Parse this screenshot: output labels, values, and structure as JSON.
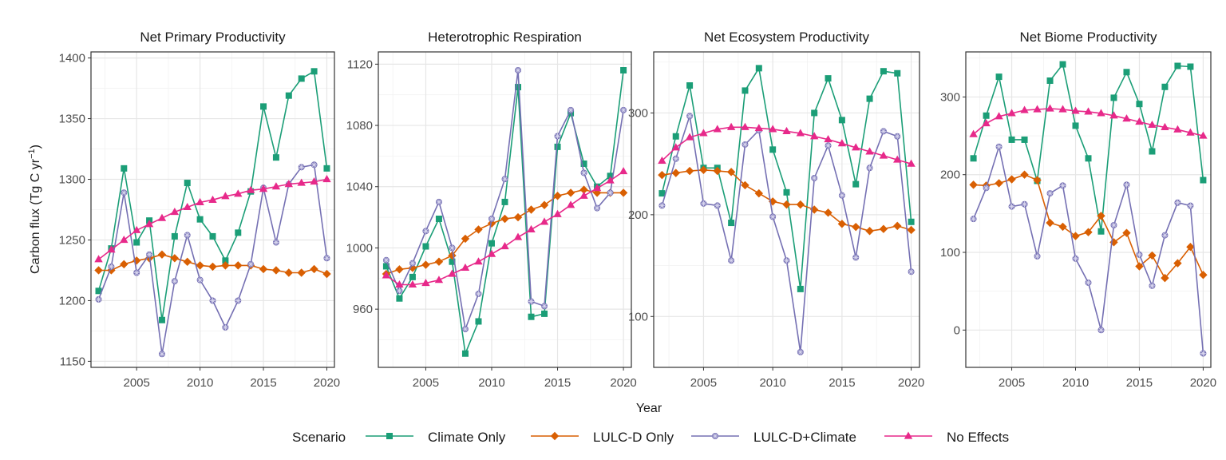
{
  "colors": {
    "Climate Only": "#1b9e77",
    "LULC-D Only": "#d95f02",
    "LULC-D+Climate": "#7570b3",
    "No Effects": "#e7298a"
  },
  "legend": {
    "title": "Scenario",
    "items": [
      {
        "name": "Climate Only",
        "shape": "square"
      },
      {
        "name": "LULC-D Only",
        "shape": "diamond"
      },
      {
        "name": "LULC-D+Climate",
        "shape": "asterisk-circle"
      },
      {
        "name": "No Effects",
        "shape": "triangle"
      }
    ]
  },
  "axes": {
    "xlabel": "Year",
    "ylabel": "Carbon flux (Tg C yr",
    "ylabel_sup": "−1",
    "ylabel_end": ")"
  },
  "chart_data": [
    {
      "type": "line",
      "title": "Net Primary Productivity",
      "xlim": [
        2001.4,
        2020.6
      ],
      "ylim": [
        1145,
        1405
      ],
      "xticks": [
        2005,
        2010,
        2015,
        2020
      ],
      "yticks": [
        1150,
        1200,
        1250,
        1300,
        1350,
        1400
      ],
      "x": [
        2002,
        2003,
        2004,
        2005,
        2006,
        2007,
        2008,
        2009,
        2010,
        2011,
        2012,
        2013,
        2014,
        2015,
        2016,
        2017,
        2018,
        2019,
        2020
      ],
      "series": [
        {
          "name": "Climate Only",
          "values": [
            1208,
            1243,
            1309,
            1248,
            1266,
            1184,
            1253,
            1297,
            1267,
            1253,
            1233,
            1256,
            1290,
            1360,
            1318,
            1369,
            1383,
            1389,
            1309
          ]
        },
        {
          "name": "LULC-D Only",
          "values": [
            1225,
            1225,
            1230,
            1233,
            1235,
            1238,
            1235,
            1232,
            1229,
            1228,
            1229,
            1229,
            1229,
            1226,
            1225,
            1223,
            1223,
            1226,
            1222
          ]
        },
        {
          "name": "LULC-D+Climate",
          "values": [
            1201,
            1228,
            1289,
            1223,
            1238,
            1156,
            1216,
            1254,
            1217,
            1200,
            1178,
            1200,
            1230,
            1293,
            1248,
            1296,
            1310,
            1312,
            1235
          ]
        },
        {
          "name": "No Effects",
          "values": [
            1234,
            1242,
            1250,
            1258,
            1263,
            1268,
            1273,
            1277,
            1281,
            1283,
            1286,
            1288,
            1291,
            1292,
            1294,
            1296,
            1297,
            1298,
            1300
          ]
        }
      ]
    },
    {
      "type": "line",
      "title": "Heterotrophic Respiration",
      "xlim": [
        2001.4,
        2020.6
      ],
      "ylim": [
        922,
        1128
      ],
      "xticks": [
        2005,
        2010,
        2015,
        2020
      ],
      "yticks": [
        960,
        1000,
        1040,
        1080,
        1120
      ],
      "x": [
        2002,
        2003,
        2004,
        2005,
        2006,
        2007,
        2008,
        2009,
        2010,
        2011,
        2012,
        2013,
        2014,
        2015,
        2016,
        2017,
        2018,
        2019,
        2020
      ],
      "series": [
        {
          "name": "Climate Only",
          "values": [
            988,
            967,
            981,
            1001,
            1019,
            991,
            931,
            952,
            1003,
            1030,
            1105,
            955,
            957,
            1066,
            1088,
            1055,
            1040,
            1047,
            1116
          ]
        },
        {
          "name": "LULC-D Only",
          "values": [
            983,
            986,
            987,
            989,
            991,
            995,
            1006,
            1012,
            1016,
            1019,
            1020,
            1025,
            1028,
            1034,
            1036,
            1038,
            1036,
            1036,
            1036
          ]
        },
        {
          "name": "LULC-D+Climate",
          "values": [
            992,
            972,
            990,
            1011,
            1030,
            1000,
            947,
            970,
            1019,
            1045,
            1116,
            965,
            962,
            1073,
            1090,
            1049,
            1026,
            1036,
            1090
          ]
        },
        {
          "name": "No Effects",
          "values": [
            982,
            976,
            976,
            977,
            979,
            983,
            987,
            991,
            996,
            1001,
            1007,
            1012,
            1017,
            1022,
            1028,
            1034,
            1039,
            1044,
            1050
          ]
        }
      ]
    },
    {
      "type": "line",
      "title": "Net Ecosystem Productivity",
      "xlim": [
        2001.4,
        2020.6
      ],
      "ylim": [
        50,
        360
      ],
      "xticks": [
        2005,
        2010,
        2015,
        2020
      ],
      "yticks": [
        100,
        200,
        300
      ],
      "x": [
        2002,
        2003,
        2004,
        2005,
        2006,
        2007,
        2008,
        2009,
        2010,
        2011,
        2012,
        2013,
        2014,
        2015,
        2016,
        2017,
        2018,
        2019,
        2020
      ],
      "series": [
        {
          "name": "Climate Only",
          "values": [
            221,
            277,
            327,
            246,
            246,
            192,
            322,
            344,
            264,
            222,
            127,
            300,
            334,
            293,
            230,
            314,
            341,
            339,
            193
          ]
        },
        {
          "name": "LULC-D Only",
          "values": [
            239,
            241,
            243,
            244,
            243,
            242,
            229,
            221,
            213,
            210,
            210,
            205,
            202,
            191,
            188,
            184,
            186,
            189,
            185
          ]
        },
        {
          "name": "LULC-D+Climate",
          "values": [
            209,
            255,
            297,
            211,
            209,
            155,
            269,
            283,
            198,
            155,
            65,
            236,
            268,
            219,
            158,
            246,
            282,
            277,
            144
          ]
        },
        {
          "name": "No Effects",
          "values": [
            253,
            266,
            276,
            280,
            284,
            286,
            286,
            285,
            284,
            282,
            280,
            277,
            274,
            270,
            266,
            262,
            258,
            254,
            250
          ]
        }
      ]
    },
    {
      "type": "line",
      "title": "Net Biome Productivity",
      "xlim": [
        2001.4,
        2020.6
      ],
      "ylim": [
        -48,
        358
      ],
      "xticks": [
        2005,
        2010,
        2015,
        2020
      ],
      "yticks": [
        0,
        100,
        200,
        300
      ],
      "x": [
        2002,
        2003,
        2004,
        2005,
        2006,
        2007,
        2008,
        2009,
        2010,
        2011,
        2012,
        2013,
        2014,
        2015,
        2016,
        2017,
        2018,
        2019,
        2020
      ],
      "series": [
        {
          "name": "Climate Only",
          "values": [
            221,
            276,
            326,
            245,
            245,
            192,
            321,
            342,
            263,
            221,
            127,
            299,
            332,
            291,
            230,
            313,
            340,
            339,
            193
          ]
        },
        {
          "name": "LULC-D Only",
          "values": [
            187,
            186,
            189,
            194,
            200,
            193,
            138,
            133,
            121,
            126,
            147,
            113,
            125,
            82,
            96,
            67,
            86,
            107,
            71
          ]
        },
        {
          "name": "LULC-D+Climate",
          "values": [
            143,
            183,
            236,
            159,
            162,
            95,
            176,
            186,
            92,
            61,
            0,
            135,
            187,
            97,
            57,
            122,
            164,
            160,
            -30
          ]
        },
        {
          "name": "No Effects",
          "values": [
            252,
            266,
            275,
            279,
            283,
            284,
            285,
            284,
            282,
            281,
            279,
            276,
            272,
            268,
            264,
            261,
            258,
            254,
            250
          ]
        }
      ]
    }
  ]
}
